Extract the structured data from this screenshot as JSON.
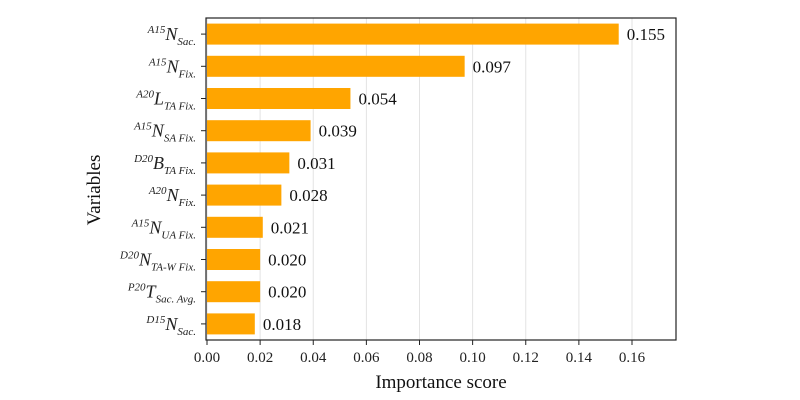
{
  "chart_data": {
    "type": "bar",
    "orientation": "horizontal",
    "xlabel": "Importance score",
    "ylabel": "Variables",
    "xlim": [
      0,
      0.175
    ],
    "xticks": [
      "0.00",
      "0.02",
      "0.04",
      "0.06",
      "0.08",
      "0.10",
      "0.12",
      "0.14",
      "0.16"
    ],
    "grid": true,
    "bar_color": "#FFA500",
    "categories": [
      {
        "sup": "A15",
        "main": "N",
        "sub": "Sac."
      },
      {
        "sup": "A15",
        "main": "N",
        "sub": "Fix."
      },
      {
        "sup": "A20",
        "main": "L",
        "sub": "TA Fix."
      },
      {
        "sup": "A15",
        "main": "N",
        "sub": "SA Fix."
      },
      {
        "sup": "D20",
        "main": "B",
        "sub": "TA Fix."
      },
      {
        "sup": "A20",
        "main": "N",
        "sub": "Fix."
      },
      {
        "sup": "A15",
        "main": "N",
        "sub": "UA Fix."
      },
      {
        "sup": "D20",
        "main": "N",
        "sub": "TA-W Fix."
      },
      {
        "sup": "P20",
        "main": "T",
        "sub": "Sac. Avg."
      },
      {
        "sup": "D15",
        "main": "N",
        "sub": "Sac."
      }
    ],
    "values": [
      0.155,
      0.097,
      0.054,
      0.039,
      0.031,
      0.028,
      0.021,
      0.02,
      0.02,
      0.018
    ],
    "data_labels": [
      "0.155",
      "0.097",
      "0.054",
      "0.039",
      "0.031",
      "0.028",
      "0.021",
      "0.020",
      "0.020",
      "0.018"
    ]
  }
}
